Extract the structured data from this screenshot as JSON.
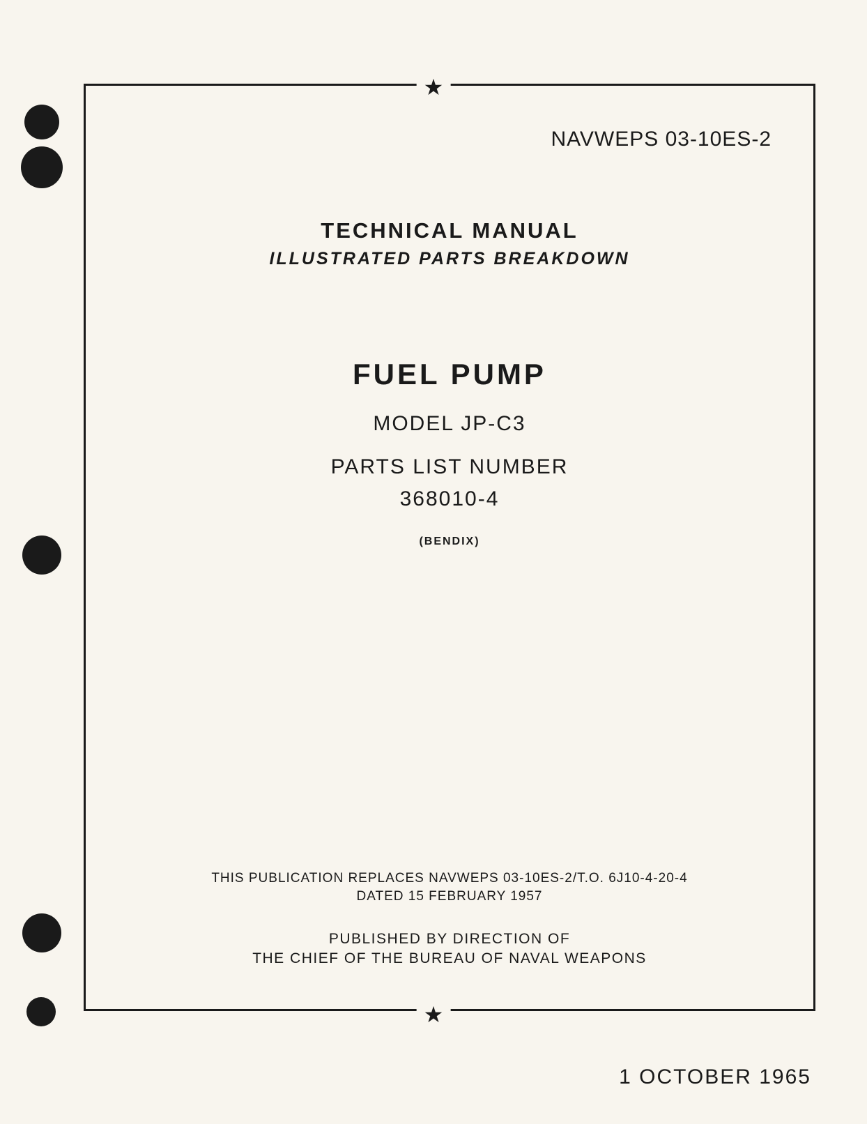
{
  "document": {
    "doc_number": "NAVWEPS 03-10ES-2",
    "heading_main": "TECHNICAL MANUAL",
    "heading_sub": "ILLUSTRATED PARTS BREAKDOWN",
    "title": "FUEL PUMP",
    "model": "MODEL JP-C3",
    "parts_list_label": "PARTS LIST NUMBER",
    "parts_list_number": "368010-4",
    "manufacturer": "(BENDIX)",
    "replaces": "THIS PUBLICATION REPLACES NAVWEPS 03-10ES-2/T.O. 6J10-4-20-4",
    "dated": "DATED 15 FEBRUARY 1957",
    "published_by": "PUBLISHED BY DIRECTION OF",
    "chief": "THE CHIEF OF THE BUREAU OF NAVAL WEAPONS",
    "publication_date": "1 OCTOBER 1965",
    "star": "★"
  },
  "colors": {
    "background": "#f8f5ee",
    "text": "#1a1a1a",
    "border": "#1a1a1a"
  }
}
